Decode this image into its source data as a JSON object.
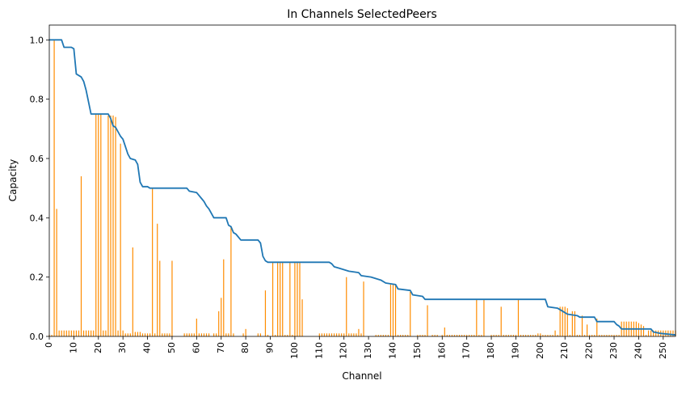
{
  "chart_data": {
    "type": "bar+line",
    "title": "In Channels SelectedPeers",
    "xlabel": "Channel",
    "ylabel": "Capacity",
    "xlim": [
      0,
      255
    ],
    "ylim": [
      0,
      1.05
    ],
    "x_ticks": [
      0,
      10,
      20,
      30,
      40,
      50,
      60,
      70,
      80,
      90,
      100,
      110,
      120,
      130,
      140,
      150,
      160,
      170,
      180,
      190,
      200,
      210,
      220,
      230,
      240,
      250
    ],
    "y_ticks": [
      0.0,
      0.2,
      0.4,
      0.6,
      0.8,
      1.0
    ],
    "y_tick_labels": [
      "0.0",
      "0.2",
      "0.4",
      "0.6",
      "0.8",
      "1.0"
    ],
    "bar_color": "#ff8c00",
    "line_color": "#1f77b4",
    "bars_x": [
      0,
      1,
      2,
      3,
      4,
      5,
      6,
      7,
      8,
      9,
      10,
      11,
      12,
      13,
      14,
      15,
      16,
      17,
      18,
      19,
      20,
      21,
      22,
      23,
      24,
      25,
      26,
      27,
      28,
      29,
      30,
      31,
      32,
      33,
      34,
      35,
      36,
      37,
      38,
      39,
      40,
      41,
      42,
      43,
      44,
      45,
      46,
      47,
      48,
      49,
      50,
      55,
      56,
      57,
      58,
      59,
      60,
      61,
      62,
      63,
      64,
      65,
      67,
      68,
      69,
      70,
      71,
      72,
      73,
      74,
      75,
      79,
      80,
      85,
      86,
      88,
      89,
      91,
      92,
      93,
      94,
      95,
      96,
      97,
      98,
      99,
      100,
      101,
      102,
      103,
      110,
      111,
      112,
      113,
      114,
      115,
      116,
      117,
      118,
      119,
      120,
      121,
      122,
      123,
      124,
      125,
      126,
      127,
      128,
      133,
      134,
      135,
      136,
      137,
      138,
      139,
      140,
      141,
      142,
      143,
      144,
      145,
      146,
      147,
      150,
      151,
      152,
      153,
      154,
      156,
      157,
      158,
      160,
      161,
      162,
      163,
      164,
      165,
      166,
      167,
      168,
      169,
      170,
      171,
      172,
      173,
      174,
      175,
      176,
      177,
      180,
      181,
      182,
      183,
      184,
      185,
      186,
      187,
      188,
      189,
      190,
      191,
      192,
      193,
      194,
      195,
      196,
      197,
      198,
      199,
      200,
      201,
      202,
      203,
      204,
      205,
      206,
      207,
      208,
      209,
      210,
      211,
      212,
      213,
      214,
      215,
      216,
      217,
      218,
      219,
      220,
      221,
      222,
      223,
      224,
      225,
      226,
      227,
      228,
      229,
      230,
      231,
      232,
      233,
      234,
      235,
      236,
      237,
      238,
      239,
      240,
      241,
      242,
      243,
      244,
      245,
      246,
      247,
      248,
      249,
      250,
      251,
      252,
      253,
      254,
      255
    ],
    "bars_y": [
      0.005,
      0.005,
      1.0,
      0.43,
      0.02,
      0.02,
      0.02,
      0.02,
      0.02,
      0.02,
      0.02,
      0.02,
      0.02,
      0.54,
      0.02,
      0.02,
      0.02,
      0.02,
      0.02,
      0.75,
      0.75,
      0.75,
      0.02,
      0.02,
      0.745,
      0.745,
      0.745,
      0.74,
      0.02,
      0.65,
      0.02,
      0.01,
      0.01,
      0.01,
      0.3,
      0.015,
      0.015,
      0.015,
      0.01,
      0.01,
      0.01,
      0.01,
      0.5,
      0.01,
      0.38,
      0.255,
      0.01,
      0.01,
      0.01,
      0.01,
      0.255,
      0.01,
      0.01,
      0.01,
      0.01,
      0.01,
      0.06,
      0.01,
      0.01,
      0.01,
      0.01,
      0.01,
      0.01,
      0.01,
      0.085,
      0.13,
      0.26,
      0.01,
      0.01,
      0.37,
      0.01,
      0.01,
      0.025,
      0.01,
      0.01,
      0.155,
      0.005,
      0.25,
      0.005,
      0.25,
      0.25,
      0.25,
      0.005,
      0.005,
      0.25,
      0.005,
      0.25,
      0.25,
      0.25,
      0.125,
      0.01,
      0.01,
      0.01,
      0.01,
      0.01,
      0.01,
      0.01,
      0.01,
      0.01,
      0.01,
      0.01,
      0.2,
      0.01,
      0.01,
      0.01,
      0.01,
      0.025,
      0.01,
      0.185,
      0.005,
      0.005,
      0.005,
      0.005,
      0.005,
      0.005,
      0.175,
      0.175,
      0.175,
      0.005,
      0.005,
      0.005,
      0.005,
      0.005,
      0.15,
      0.005,
      0.005,
      0.005,
      0.005,
      0.105,
      0.005,
      0.005,
      0.005,
      0.005,
      0.03,
      0.005,
      0.005,
      0.005,
      0.005,
      0.005,
      0.005,
      0.005,
      0.005,
      0.005,
      0.005,
      0.005,
      0.005,
      0.125,
      0.005,
      0.005,
      0.125,
      0.005,
      0.005,
      0.005,
      0.005,
      0.1,
      0.005,
      0.005,
      0.005,
      0.005,
      0.005,
      0.005,
      0.125,
      0.005,
      0.005,
      0.005,
      0.005,
      0.005,
      0.005,
      0.005,
      0.01,
      0.01,
      0.005,
      0.005,
      0.005,
      0.005,
      0.005,
      0.02,
      0.005,
      0.1,
      0.1,
      0.1,
      0.095,
      0.005,
      0.085,
      0.085,
      0.005,
      0.005,
      0.07,
      0.005,
      0.04,
      0.005,
      0.005,
      0.005,
      0.06,
      0.005,
      0.005,
      0.005,
      0.005,
      0.005,
      0.005,
      0.005,
      0.005,
      0.005,
      0.05,
      0.05,
      0.05,
      0.05,
      0.05,
      0.05,
      0.05,
      0.045,
      0.04,
      0.035,
      0.005,
      0.02,
      0.02,
      0.02,
      0.02,
      0.02,
      0.02,
      0.02,
      0.02,
      0.02,
      0.02,
      0.02,
      0.02,
      0.01,
      0.01,
      0.01,
      0.01,
      0.01,
      0.005,
      0.005,
      0.005,
      0.005
    ],
    "line_points": [
      [
        0,
        1.0
      ],
      [
        5,
        1.0
      ],
      [
        6,
        0.975
      ],
      [
        9,
        0.975
      ],
      [
        10,
        0.97
      ],
      [
        11,
        0.885
      ],
      [
        12,
        0.88
      ],
      [
        13,
        0.875
      ],
      [
        14,
        0.86
      ],
      [
        15,
        0.83
      ],
      [
        16,
        0.79
      ],
      [
        17,
        0.75
      ],
      [
        24,
        0.75
      ],
      [
        25,
        0.735
      ],
      [
        26,
        0.71
      ],
      [
        27,
        0.705
      ],
      [
        28,
        0.69
      ],
      [
        29,
        0.675
      ],
      [
        30,
        0.665
      ],
      [
        31,
        0.64
      ],
      [
        32,
        0.615
      ],
      [
        33,
        0.6
      ],
      [
        35,
        0.595
      ],
      [
        36,
        0.58
      ],
      [
        37,
        0.52
      ],
      [
        38,
        0.505
      ],
      [
        40,
        0.505
      ],
      [
        41,
        0.5
      ],
      [
        56,
        0.5
      ],
      [
        57,
        0.49
      ],
      [
        60,
        0.485
      ],
      [
        61,
        0.475
      ],
      [
        62,
        0.465
      ],
      [
        63,
        0.455
      ],
      [
        64,
        0.44
      ],
      [
        65,
        0.43
      ],
      [
        67,
        0.4
      ],
      [
        72,
        0.4
      ],
      [
        73,
        0.375
      ],
      [
        74,
        0.37
      ],
      [
        75,
        0.35
      ],
      [
        76,
        0.345
      ],
      [
        78,
        0.325
      ],
      [
        85,
        0.325
      ],
      [
        86,
        0.315
      ],
      [
        87,
        0.27
      ],
      [
        88,
        0.255
      ],
      [
        89,
        0.25
      ],
      [
        114,
        0.25
      ],
      [
        115,
        0.245
      ],
      [
        116,
        0.235
      ],
      [
        118,
        0.23
      ],
      [
        122,
        0.22
      ],
      [
        126,
        0.215
      ],
      [
        127,
        0.205
      ],
      [
        131,
        0.2
      ],
      [
        135,
        0.19
      ],
      [
        137,
        0.18
      ],
      [
        141,
        0.175
      ],
      [
        142,
        0.16
      ],
      [
        147,
        0.155
      ],
      [
        148,
        0.14
      ],
      [
        152,
        0.135
      ],
      [
        153,
        0.125
      ],
      [
        202,
        0.125
      ],
      [
        203,
        0.1
      ],
      [
        207,
        0.095
      ],
      [
        209,
        0.085
      ],
      [
        211,
        0.075
      ],
      [
        215,
        0.07
      ],
      [
        216,
        0.065
      ],
      [
        222,
        0.065
      ],
      [
        223,
        0.05
      ],
      [
        230,
        0.05
      ],
      [
        231,
        0.04
      ],
      [
        232,
        0.035
      ],
      [
        233,
        0.025
      ],
      [
        245,
        0.025
      ],
      [
        246,
        0.015
      ],
      [
        249,
        0.01
      ],
      [
        255,
        0.005
      ]
    ],
    "grid": false,
    "legend": null
  }
}
